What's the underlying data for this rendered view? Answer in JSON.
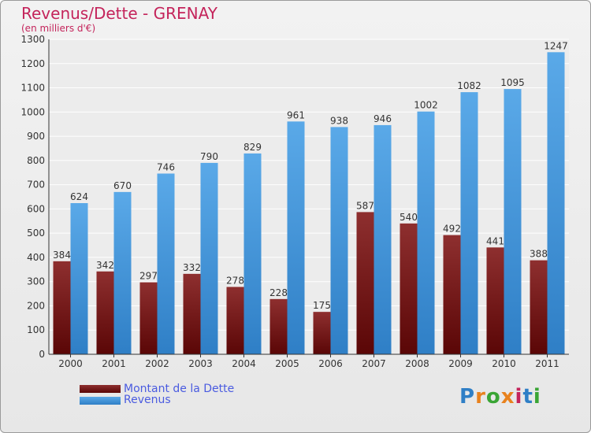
{
  "title": "Revenus/Dette - GRENAY",
  "subtitle": "(en milliers d'€)",
  "legend": {
    "debt_label": "Montant de la Dette",
    "revenue_label": "Revenus"
  },
  "brand": "Proxiti",
  "colors": {
    "debt": "#6b1414",
    "revenue": "#3d8fd8",
    "title": "#c4245b",
    "legend_text": "#4a5be0"
  },
  "chart_data": {
    "type": "bar",
    "title": "Revenus/Dette - GRENAY",
    "subtitle": "(en milliers d'€)",
    "categories": [
      "2000",
      "2001",
      "2002",
      "2003",
      "2004",
      "2005",
      "2006",
      "2007",
      "2008",
      "2009",
      "2010",
      "2011"
    ],
    "series": [
      {
        "name": "Montant de la Dette",
        "values": [
          384,
          342,
          297,
          332,
          278,
          228,
          175,
          587,
          540,
          492,
          441,
          388
        ]
      },
      {
        "name": "Revenus",
        "values": [
          624,
          670,
          746,
          790,
          829,
          961,
          938,
          946,
          1002,
          1082,
          1095,
          1247
        ]
      }
    ],
    "ylim": [
      0,
      1300
    ],
    "yticks": [
      0,
      100,
      200,
      300,
      400,
      500,
      600,
      700,
      800,
      900,
      1000,
      1100,
      1200,
      1300
    ],
    "grid": true,
    "legend_position": "bottom-left"
  }
}
